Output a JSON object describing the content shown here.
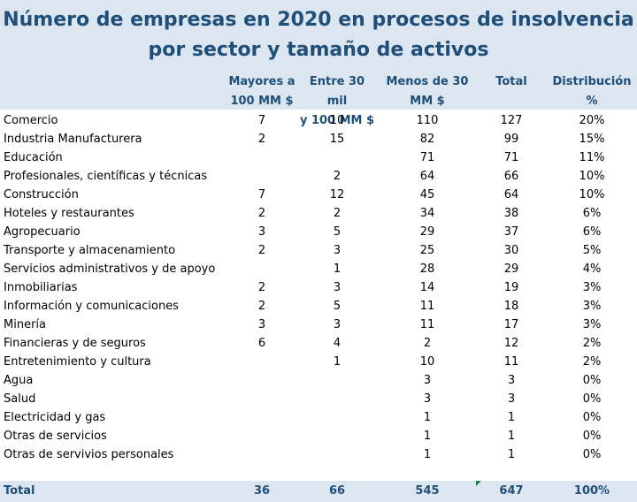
{
  "title": "Número de empresas en 2020 en procesos de insolvencia por sector y tamaño de activos",
  "columns": {
    "mayores": [
      "Mayores a",
      "100 MM $"
    ],
    "entre": [
      "Entre 30 mil",
      "y 100 MM $"
    ],
    "menos": [
      "Menos de 30",
      "MM $"
    ],
    "total": "Total",
    "distribucion": [
      "Distribución",
      "%"
    ]
  },
  "rows": [
    {
      "sector": "Comercio",
      "mayores": "7",
      "entre": "10",
      "menos": "110",
      "total": "127",
      "dist": "20%"
    },
    {
      "sector": "Industria Manufacturera",
      "mayores": "2",
      "entre": "15",
      "menos": "82",
      "total": "99",
      "dist": "15%"
    },
    {
      "sector": "Educación",
      "mayores": "",
      "entre": "",
      "menos": "71",
      "total": "71",
      "dist": "11%"
    },
    {
      "sector": "Profesionales, científicas y técnicas",
      "mayores": "",
      "entre": "2",
      "menos": "64",
      "total": "66",
      "dist": "10%"
    },
    {
      "sector": "Construcción",
      "mayores": "7",
      "entre": "12",
      "menos": "45",
      "total": "64",
      "dist": "10%"
    },
    {
      "sector": "Hoteles y restaurantes",
      "mayores": "2",
      "entre": "2",
      "menos": "34",
      "total": "38",
      "dist": "6%"
    },
    {
      "sector": "Agropecuario",
      "mayores": "3",
      "entre": "5",
      "menos": "29",
      "total": "37",
      "dist": "6%"
    },
    {
      "sector": "Transporte y almacenamiento",
      "mayores": "2",
      "entre": "3",
      "menos": "25",
      "total": "30",
      "dist": "5%"
    },
    {
      "sector": "Servicios administrativos y de apoyo",
      "mayores": "",
      "entre": "1",
      "menos": "28",
      "total": "29",
      "dist": "4%"
    },
    {
      "sector": "Inmobiliarias",
      "mayores": "2",
      "entre": "3",
      "menos": "14",
      "total": "19",
      "dist": "3%"
    },
    {
      "sector": "Información y comunicaciones",
      "mayores": "2",
      "entre": "5",
      "menos": "11",
      "total": "18",
      "dist": "3%"
    },
    {
      "sector": "Minería",
      "mayores": "3",
      "entre": "3",
      "menos": "11",
      "total": "17",
      "dist": "3%"
    },
    {
      "sector": "Financieras y de seguros",
      "mayores": "6",
      "entre": "4",
      "menos": "2",
      "total": "12",
      "dist": "2%"
    },
    {
      "sector": "Entretenimiento y cultura",
      "mayores": "",
      "entre": "1",
      "menos": "10",
      "total": "11",
      "dist": "2%"
    },
    {
      "sector": "Agua",
      "mayores": "",
      "entre": "",
      "menos": "3",
      "total": "3",
      "dist": "0%"
    },
    {
      "sector": "Salud",
      "mayores": "",
      "entre": "",
      "menos": "3",
      "total": "3",
      "dist": "0%"
    },
    {
      "sector": "Electricidad y gas",
      "mayores": "",
      "entre": "",
      "menos": "1",
      "total": "1",
      "dist": "0%"
    },
    {
      "sector": "Otras de servicios",
      "mayores": "",
      "entre": "",
      "menos": "1",
      "total": "1",
      "dist": "0%"
    },
    {
      "sector": "Otras de servivios personales",
      "mayores": "",
      "entre": "",
      "menos": "1",
      "total": "1",
      "dist": "0%"
    }
  ],
  "totals": {
    "label": "Total",
    "mayores": "36",
    "entre": "66",
    "menos": "545",
    "total": "647",
    "dist": "100%"
  },
  "colors": {
    "header_bg": "#dce6f1",
    "header_text": "#1f4e79",
    "marker": "#1e8449"
  }
}
